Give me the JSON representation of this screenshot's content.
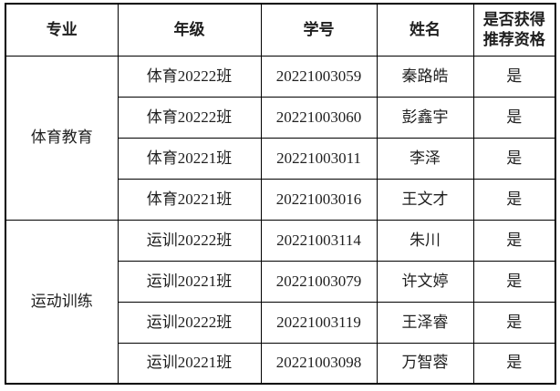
{
  "page": {
    "background_color": "#ffffff",
    "text_color": "#1f1f1f",
    "border_color": "#000000"
  },
  "table": {
    "headers": {
      "major": "专业",
      "grade": "年级",
      "student_id": "学号",
      "name": "姓名",
      "qualified_line1": "是否获得",
      "qualified_line2": "推荐资格"
    },
    "groups": [
      {
        "major": "体育教育",
        "rows": [
          {
            "grade": "体育20222班",
            "student_id": "20221003059",
            "name": "秦路皓",
            "qualified": "是"
          },
          {
            "grade": "体育20222班",
            "student_id": "20221003060",
            "name": "彭鑫宇",
            "qualified": "是"
          },
          {
            "grade": "体育20221班",
            "student_id": "20221003011",
            "name": "李泽",
            "qualified": "是"
          },
          {
            "grade": "体育20221班",
            "student_id": "20221003016",
            "name": "王文才",
            "qualified": "是"
          }
        ]
      },
      {
        "major": "运动训练",
        "rows": [
          {
            "grade": "运训20222班",
            "student_id": "20221003114",
            "name": "朱川",
            "qualified": "是"
          },
          {
            "grade": "运训20221班",
            "student_id": "20221003079",
            "name": "许文婷",
            "qualified": "是"
          },
          {
            "grade": "运训20222班",
            "student_id": "20221003119",
            "name": "王泽睿",
            "qualified": "是"
          },
          {
            "grade": "运训20221班",
            "student_id": "20221003098",
            "name": "万智蓉",
            "qualified": "是"
          }
        ]
      }
    ]
  }
}
